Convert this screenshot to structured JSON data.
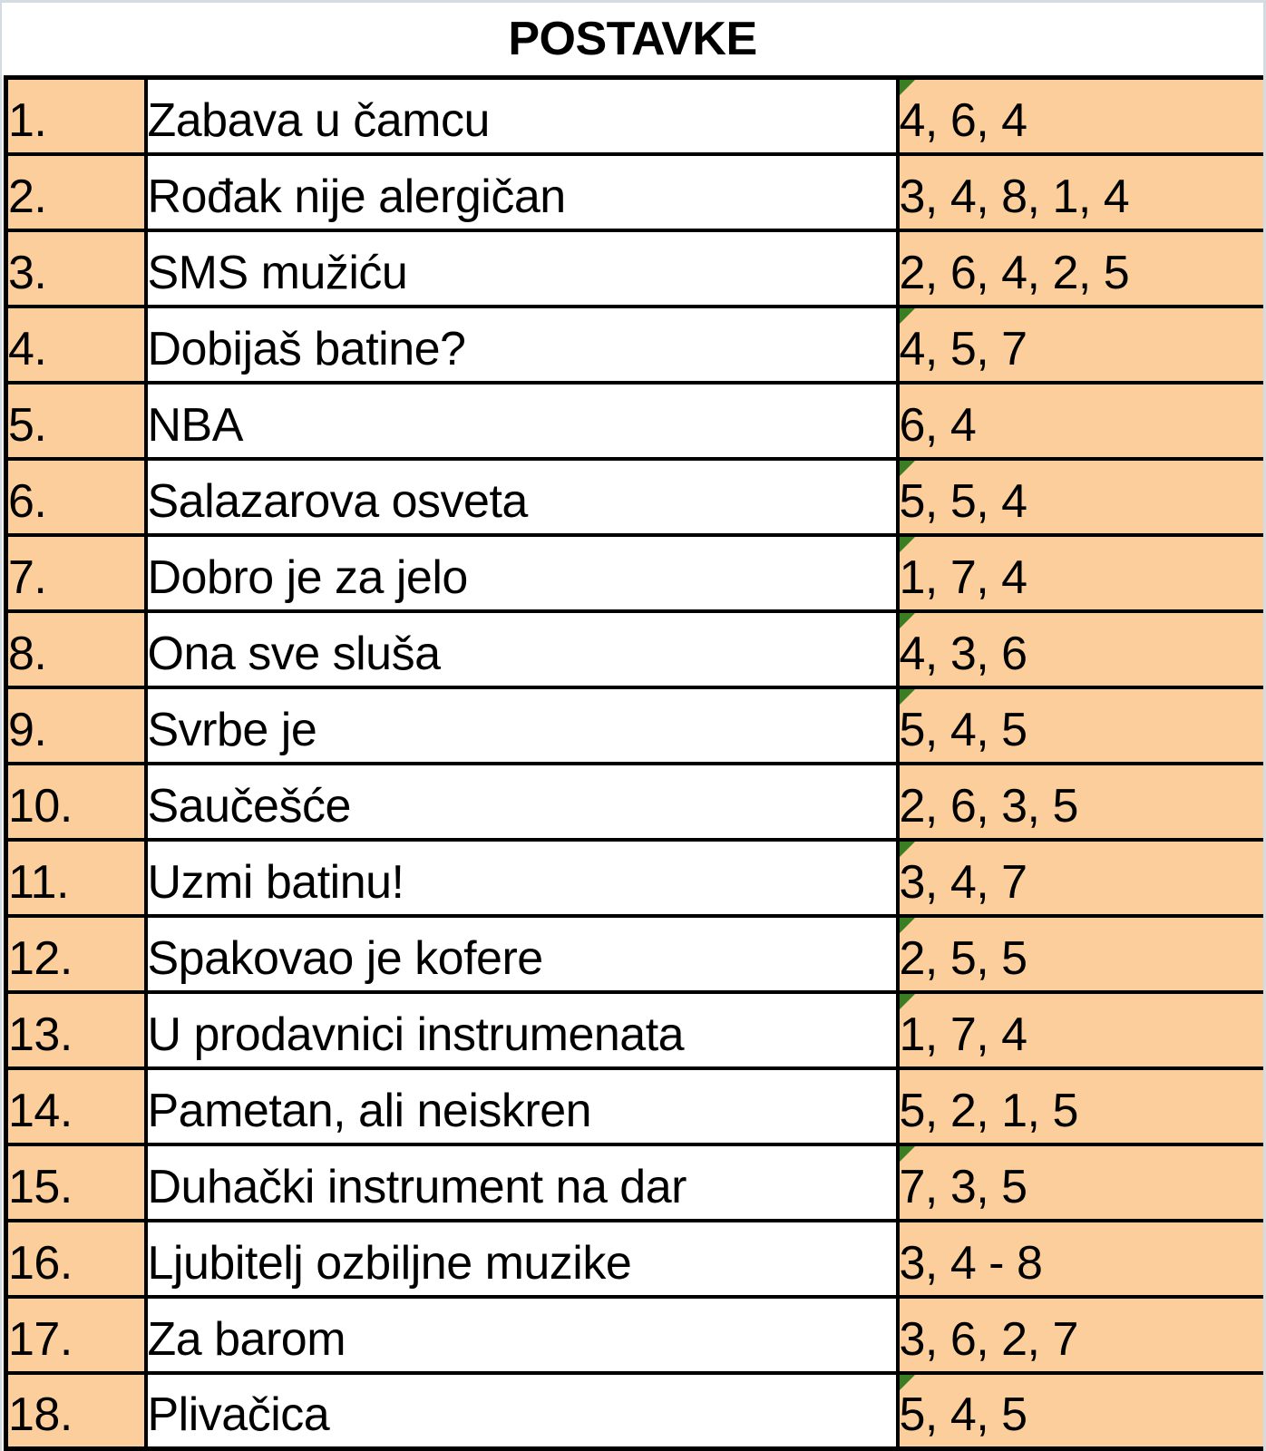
{
  "title": "POSTAVKE",
  "colors": {
    "accent_fill": "#FCCE9B",
    "flag_green": "#3B7D23",
    "border_black": "#000000",
    "gridline_gray": "#D4DBE3"
  },
  "rows": [
    {
      "num": "1.",
      "clue": "Zabava u čamcu",
      "counts": "4, 6, 4",
      "flag": true
    },
    {
      "num": "2.",
      "clue": "Rođak nije alergičan",
      "counts": "3, 4, 8, 1, 4",
      "flag": false
    },
    {
      "num": "3.",
      "clue": "SMS mužiću",
      "counts": "2, 6, 4, 2, 5",
      "flag": false
    },
    {
      "num": "4.",
      "clue": "Dobijaš batine?",
      "counts": "4, 5, 7",
      "flag": true
    },
    {
      "num": "5.",
      "clue": "NBA",
      "counts": "6, 4",
      "flag": false
    },
    {
      "num": "6.",
      "clue": "Salazarova osveta",
      "counts": "5, 5, 4",
      "flag": true
    },
    {
      "num": "7.",
      "clue": "Dobro je za jelo",
      "counts": "1, 7, 4",
      "flag": true
    },
    {
      "num": "8.",
      "clue": "Ona sve sluša",
      "counts": "4, 3, 6",
      "flag": true
    },
    {
      "num": "9.",
      "clue": "Svrbe je",
      "counts": "5, 4, 5",
      "flag": true
    },
    {
      "num": "10.",
      "clue": "Saučešće",
      "counts": "2, 6, 3, 5",
      "flag": false
    },
    {
      "num": "11.",
      "clue": "Uzmi batinu!",
      "counts": "3, 4, 7",
      "flag": true
    },
    {
      "num": "12.",
      "clue": "Spakovao je kofere",
      "counts": "2, 5, 5",
      "flag": true
    },
    {
      "num": "13.",
      "clue": "U prodavnici instrumenata",
      "counts": "1, 7, 4",
      "flag": true
    },
    {
      "num": "14.",
      "clue": "Pametan, ali neiskren",
      "counts": "5, 2, 1, 5",
      "flag": false
    },
    {
      "num": "15.",
      "clue": "Duhački instrument na dar",
      "counts": "7, 3, 5",
      "flag": true
    },
    {
      "num": "16.",
      "clue": "Ljubitelj ozbiljne muzike",
      "counts": "3, 4 - 8",
      "flag": false
    },
    {
      "num": "17.",
      "clue": "Za barom",
      "counts": "3, 6, 2, 7",
      "flag": false
    },
    {
      "num": "18.",
      "clue": "Plivačica",
      "counts": "5, 4, 5",
      "flag": true
    }
  ]
}
